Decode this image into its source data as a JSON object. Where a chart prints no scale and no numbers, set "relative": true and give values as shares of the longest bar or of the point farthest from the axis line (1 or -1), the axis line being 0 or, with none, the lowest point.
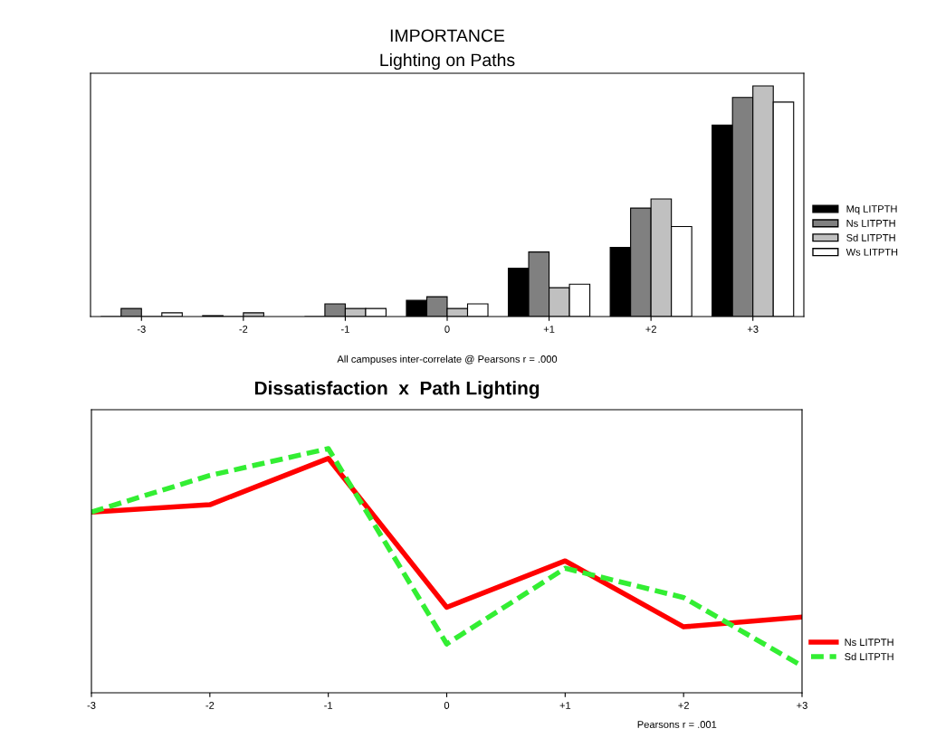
{
  "chart_data": [
    {
      "type": "bar",
      "title": "IMPORTANCE",
      "subtitle": "Lighting on Paths",
      "relative": true,
      "legend": "right",
      "categories": [
        "-3",
        "-2",
        "-1",
        "0",
        "+1",
        "+2",
        "+3"
      ],
      "series": [
        {
          "name": "Mq LITPTH",
          "color": "#000000",
          "values": [
            0,
            0.004,
            0,
            0.07,
            0.21,
            0.3,
            0.83
          ]
        },
        {
          "name": "Ns LITPTH",
          "color": "#808080",
          "values": [
            0.035,
            0,
            0.055,
            0.086,
            0.28,
            0.47,
            0.95
          ]
        },
        {
          "name": "Sd LITPTH",
          "color": "#c0c0c0",
          "values": [
            0,
            0.016,
            0.035,
            0.035,
            0.125,
            0.51,
            1
          ]
        },
        {
          "name": "Ws LITPTH",
          "color": "#ffffff",
          "values": [
            0.016,
            null,
            0.035,
            0.055,
            0.14,
            0.39,
            0.93
          ]
        }
      ],
      "annotations": [
        "All campuses inter-correlate @ Pearsons r = .000"
      ]
    },
    {
      "type": "line",
      "title": "Dissatisfaction  x  Path Lighting",
      "relative": true,
      "legend": "right",
      "categories": [
        "-3",
        "-2",
        "-1",
        "0",
        "+1",
        "+2",
        "+3"
      ],
      "series": [
        {
          "name": "Ns LITPTH",
          "color": "#ff0000",
          "line_style": "solid",
          "values": [
            0.74,
            0.77,
            0.96,
            0.35,
            0.54,
            0.27,
            0.31
          ]
        },
        {
          "name": "Sd LITPTH",
          "color": "#33ee33",
          "line_style": "dashed",
          "values": [
            0.74,
            0.89,
            1,
            0.2,
            0.51,
            0.39,
            0.11
          ]
        }
      ],
      "annotations": [
        "Pearsons r = .001"
      ]
    }
  ]
}
